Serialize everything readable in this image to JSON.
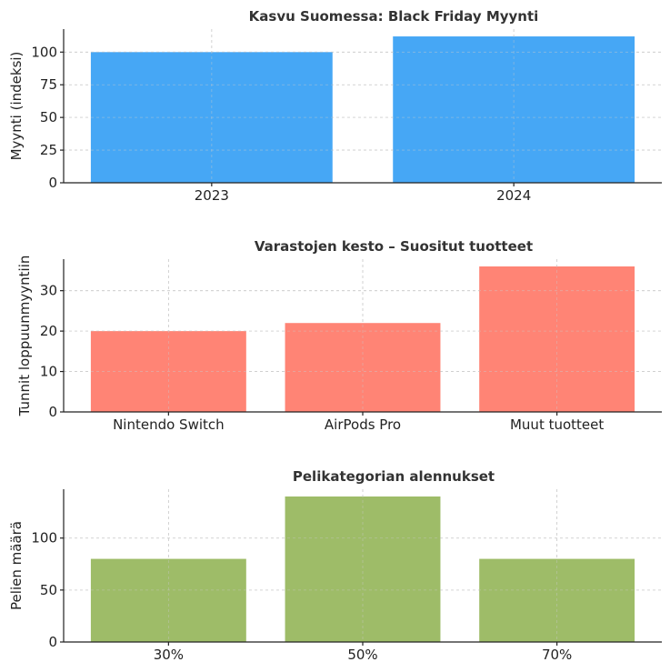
{
  "chart_data": [
    {
      "type": "bar",
      "title": "Kasvu Suomessa: Black Friday Myynti",
      "xlabel": "",
      "ylabel": "Myynti (indeksi)",
      "categories": [
        "2023",
        "2024"
      ],
      "values": [
        100,
        112
      ],
      "color": "#42A5F5",
      "yticks": [
        0,
        25,
        50,
        75,
        100
      ],
      "ylim": [
        0,
        117.6
      ],
      "grid": true
    },
    {
      "type": "bar",
      "title": "Varastojen kesto – Suositut tuotteet",
      "xlabel": "",
      "ylabel": "Tunnit loppuunmyyntiin",
      "categories": [
        "Nintendo Switch",
        "AirPods Pro",
        "Muut tuotteet"
      ],
      "values": [
        20,
        22,
        36
      ],
      "color": "#FF8272",
      "yticks": [
        0,
        10,
        20,
        30
      ],
      "ylim": [
        0,
        37.8
      ],
      "grid": true
    },
    {
      "type": "bar",
      "title": "Pelikategorian alennukset",
      "xlabel": "",
      "ylabel": "Pelien määrä",
      "categories": [
        "30%",
        "50%",
        "70%"
      ],
      "values": [
        80,
        140,
        80
      ],
      "color": "#9CBB65",
      "yticks": [
        0,
        50,
        100
      ],
      "ylim": [
        0,
        147
      ],
      "grid": true
    }
  ]
}
